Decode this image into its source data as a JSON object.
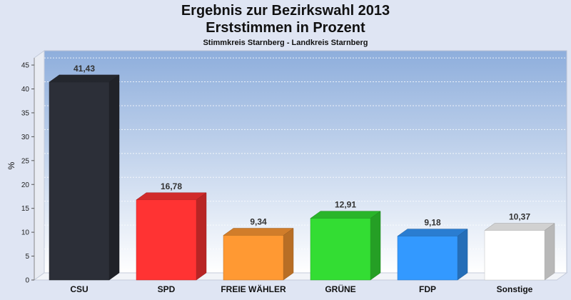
{
  "chart_data": {
    "type": "bar",
    "title": "Ergebnis zur Bezirkswahl 2013",
    "subtitle": "Erststimmen in Prozent",
    "caption": "Stimmkreis Starnberg - Landkreis Starnberg",
    "ylabel": "%",
    "xlabel": "",
    "ylim": [
      0,
      48
    ],
    "yticks": [
      0,
      5,
      10,
      15,
      20,
      25,
      30,
      35,
      40,
      45
    ],
    "grid": true,
    "categories": [
      "CSU",
      "SPD",
      "FREIE WÄHLER",
      "GRÜNE",
      "FDP",
      "Sonstige"
    ],
    "values": [
      41.43,
      16.78,
      9.34,
      12.91,
      9.18,
      10.37
    ],
    "value_labels": [
      "41,43",
      "16,78",
      "9,34",
      "12,91",
      "9,18",
      "10,37"
    ],
    "colors": [
      "#2c2f38",
      "#ff3333",
      "#ff9933",
      "#33dd33",
      "#3399ff",
      "#ffffff"
    ]
  }
}
